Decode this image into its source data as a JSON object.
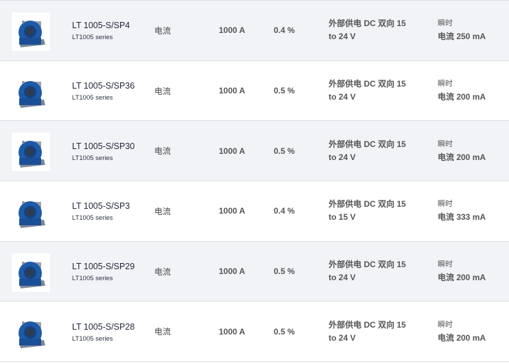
{
  "colors": {
    "row_alt": "#f2f3f7",
    "sensor_blue": "#1d5aa8"
  },
  "rows": [
    {
      "image": "LT 1005 sensor",
      "name": "LT 1005-S/SP4",
      "series": "LT1005 series",
      "type": "电流",
      "current": "1000 A",
      "accuracy": "0.4 %",
      "supply": "外部供电 DC 双向 15 to 24 V",
      "consumption_l1": "瞬时",
      "consumption_l2": "电流 250 mA"
    },
    {
      "image": "LT 1005 sensor",
      "name": "LT 1005-S/SP36",
      "series": "LT1005 series",
      "type": "电流",
      "current": "1000 A",
      "accuracy": "0.5 %",
      "supply": "外部供电 DC 双向 15 to 24 V",
      "consumption_l1": "瞬时",
      "consumption_l2": "电流 200 mA"
    },
    {
      "image": "LT 1005 sensor",
      "name": "LT 1005-S/SP30",
      "series": "LT1005 series",
      "type": "电流",
      "current": "1000 A",
      "accuracy": "0.5 %",
      "supply": "外部供电 DC 双向 15 to 24 V",
      "consumption_l1": "瞬时",
      "consumption_l2": "电流 200 mA"
    },
    {
      "image": "LT 1005 sensor",
      "name": "LT 1005-S/SP3",
      "series": "LT1005 series",
      "type": "电流",
      "current": "1000 A",
      "accuracy": "0.4 %",
      "supply": "外部供电 DC 双向 15 to 15 V",
      "consumption_l1": "瞬时",
      "consumption_l2": "电流 333 mA"
    },
    {
      "image": "LT 1005 sensor",
      "name": "LT 1005-S/SP29",
      "series": "LT1005 series",
      "type": "电流",
      "current": "1000 A",
      "accuracy": "0.5 %",
      "supply": "外部供电 DC 双向 15 to 24 V",
      "consumption_l1": "瞬时",
      "consumption_l2": "电流 200 mA"
    },
    {
      "image": "LT 1005 sensor",
      "name": "LT 1005-S/SP28",
      "series": "LT1005 series",
      "type": "电流",
      "current": "1000 A",
      "accuracy": "0.5 %",
      "supply": "外部供电 DC 双向 15 to 24 V",
      "consumption_l1": "瞬时",
      "consumption_l2": "电流 200 mA"
    }
  ]
}
